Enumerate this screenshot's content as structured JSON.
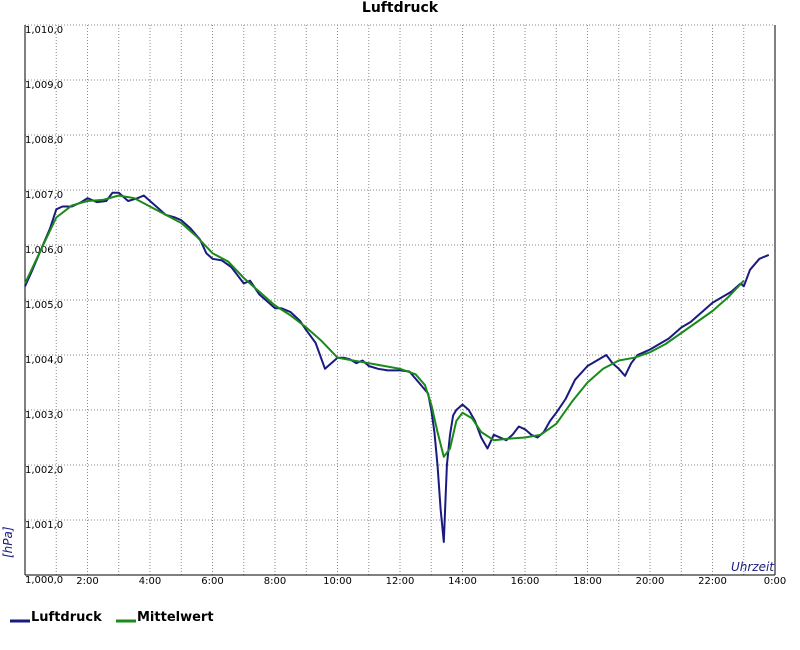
{
  "chart_data": {
    "type": "line",
    "title": "Luftdruck",
    "ylabel": "[hPa]",
    "xlabel": "Uhrzeit",
    "x_unit": "hours",
    "xlim": [
      0,
      24
    ],
    "ylim": [
      1000.0,
      1010.0
    ],
    "y_ticks": [
      {
        "value": 1000.0,
        "label": "1,000,0"
      },
      {
        "value": 1001.0,
        "label": "1,001,0"
      },
      {
        "value": 1002.0,
        "label": "1,002,0"
      },
      {
        "value": 1003.0,
        "label": "1,003,0"
      },
      {
        "value": 1004.0,
        "label": "1,004,0"
      },
      {
        "value": 1005.0,
        "label": "1,005,0"
      },
      {
        "value": 1006.0,
        "label": "1,006,0"
      },
      {
        "value": 1007.0,
        "label": "1,007,0"
      },
      {
        "value": 1008.0,
        "label": "1,008,0"
      },
      {
        "value": 1009.0,
        "label": "1,009,0"
      },
      {
        "value": 1010.0,
        "label": "1,010,0"
      }
    ],
    "x_ticks": [
      {
        "value": 2,
        "label": "2:00"
      },
      {
        "value": 4,
        "label": "4:00"
      },
      {
        "value": 6,
        "label": "6:00"
      },
      {
        "value": 8,
        "label": "8:00"
      },
      {
        "value": 10,
        "label": "10:00"
      },
      {
        "value": 12,
        "label": "12:00"
      },
      {
        "value": 14,
        "label": "14:00"
      },
      {
        "value": 16,
        "label": "16:00"
      },
      {
        "value": 18,
        "label": "18:00"
      },
      {
        "value": 20,
        "label": "20:00"
      },
      {
        "value": 22,
        "label": "22:00"
      },
      {
        "value": 24,
        "label": "0:00"
      }
    ],
    "x_minor_gridlines": [
      1,
      3,
      5,
      7,
      9,
      11,
      13,
      15,
      17,
      19,
      21,
      23
    ],
    "grid": true,
    "legend_position": "bottom-left",
    "series": [
      {
        "name": "Luftdruck",
        "color": "#1a1a80",
        "x": [
          0.0,
          0.2,
          0.5,
          0.8,
          1.0,
          1.2,
          1.5,
          1.8,
          2.0,
          2.3,
          2.6,
          2.8,
          3.0,
          3.3,
          3.6,
          3.8,
          4.0,
          4.2,
          4.5,
          4.8,
          5.0,
          5.3,
          5.6,
          5.8,
          6.0,
          6.3,
          6.6,
          6.8,
          7.0,
          7.2,
          7.5,
          7.8,
          8.0,
          8.2,
          8.5,
          8.8,
          9.0,
          9.3,
          9.6,
          9.9,
          10.0,
          10.2,
          10.4,
          10.6,
          10.8,
          11.0,
          11.3,
          11.6,
          12.0,
          12.3,
          12.6,
          12.9,
          13.0,
          13.1,
          13.2,
          13.3,
          13.4,
          13.5,
          13.6,
          13.7,
          13.8,
          14.0,
          14.2,
          14.4,
          14.6,
          14.8,
          15.0,
          15.2,
          15.4,
          15.6,
          15.8,
          16.0,
          16.2,
          16.4,
          16.6,
          16.8,
          17.0,
          17.3,
          17.6,
          18.0,
          18.3,
          18.6,
          18.8,
          19.0,
          19.2,
          19.4,
          19.6,
          19.8,
          20.0,
          20.3,
          20.6,
          21.0,
          21.3,
          21.6,
          22.0,
          22.3,
          22.6,
          22.9,
          23.0,
          23.2,
          23.5,
          23.8
        ],
        "values": [
          1005.25,
          1005.5,
          1005.9,
          1006.3,
          1006.65,
          1006.7,
          1006.7,
          1006.78,
          1006.85,
          1006.78,
          1006.8,
          1006.95,
          1006.95,
          1006.8,
          1006.85,
          1006.9,
          1006.8,
          1006.7,
          1006.55,
          1006.5,
          1006.45,
          1006.3,
          1006.1,
          1005.85,
          1005.75,
          1005.72,
          1005.6,
          1005.45,
          1005.3,
          1005.35,
          1005.1,
          1004.95,
          1004.85,
          1004.85,
          1004.78,
          1004.62,
          1004.45,
          1004.22,
          1003.75,
          1003.9,
          1003.95,
          1003.95,
          1003.92,
          1003.85,
          1003.9,
          1003.8,
          1003.75,
          1003.72,
          1003.72,
          1003.7,
          1003.5,
          1003.3,
          1003.0,
          1002.6,
          1002.0,
          1001.2,
          1000.6,
          1002.0,
          1002.55,
          1002.9,
          1003.0,
          1003.1,
          1003.0,
          1002.8,
          1002.5,
          1002.3,
          1002.55,
          1002.5,
          1002.45,
          1002.55,
          1002.7,
          1002.65,
          1002.55,
          1002.5,
          1002.6,
          1002.8,
          1002.95,
          1003.2,
          1003.55,
          1003.8,
          1003.9,
          1004.0,
          1003.85,
          1003.75,
          1003.62,
          1003.85,
          1004.0,
          1004.05,
          1004.1,
          1004.2,
          1004.3,
          1004.5,
          1004.6,
          1004.75,
          1004.95,
          1005.05,
          1005.15,
          1005.3,
          1005.25,
          1005.55,
          1005.75,
          1005.82
        ]
      },
      {
        "name": "Mittelwert",
        "color": "#1a8a1a",
        "x": [
          0.0,
          0.5,
          1.0,
          1.5,
          2.0,
          2.5,
          3.0,
          3.5,
          4.0,
          4.5,
          5.0,
          5.5,
          6.0,
          6.5,
          7.0,
          7.5,
          8.0,
          8.5,
          9.0,
          9.5,
          10.0,
          10.5,
          11.0,
          11.5,
          12.0,
          12.5,
          12.8,
          13.0,
          13.2,
          13.4,
          13.6,
          13.8,
          14.0,
          14.3,
          14.6,
          15.0,
          15.5,
          16.0,
          16.5,
          17.0,
          17.5,
          18.0,
          18.5,
          19.0,
          19.5,
          20.0,
          20.5,
          21.0,
          21.5,
          22.0,
          22.5,
          23.0
        ],
        "values": [
          1005.3,
          1005.9,
          1006.5,
          1006.72,
          1006.8,
          1006.82,
          1006.9,
          1006.85,
          1006.7,
          1006.55,
          1006.4,
          1006.15,
          1005.85,
          1005.7,
          1005.4,
          1005.15,
          1004.9,
          1004.72,
          1004.5,
          1004.25,
          1003.95,
          1003.9,
          1003.85,
          1003.8,
          1003.75,
          1003.65,
          1003.45,
          1003.1,
          1002.6,
          1002.15,
          1002.3,
          1002.8,
          1002.95,
          1002.85,
          1002.6,
          1002.45,
          1002.48,
          1002.5,
          1002.55,
          1002.75,
          1003.15,
          1003.5,
          1003.75,
          1003.9,
          1003.95,
          1004.05,
          1004.2,
          1004.4,
          1004.6,
          1004.8,
          1005.05,
          1005.35
        ]
      }
    ]
  }
}
